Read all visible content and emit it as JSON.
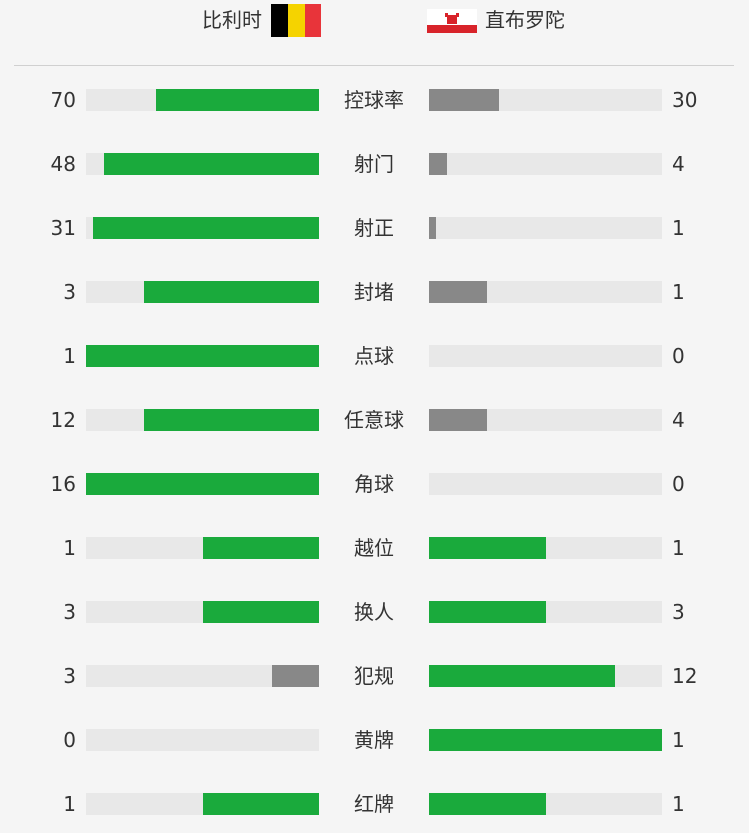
{
  "teams": {
    "home": "比利时",
    "away": "直布罗陀"
  },
  "colors": {
    "lead": "#1aaa3c",
    "trail": "#888888",
    "track": "#e8e8e8"
  },
  "stats": [
    {
      "label": "控球率",
      "home": 70,
      "away": 30
    },
    {
      "label": "射门",
      "home": 48,
      "away": 4
    },
    {
      "label": "射正",
      "home": 31,
      "away": 1
    },
    {
      "label": "封堵",
      "home": 3,
      "away": 1
    },
    {
      "label": "点球",
      "home": 1,
      "away": 0
    },
    {
      "label": "任意球",
      "home": 12,
      "away": 4
    },
    {
      "label": "角球",
      "home": 16,
      "away": 0
    },
    {
      "label": "越位",
      "home": 1,
      "away": 1
    },
    {
      "label": "换人",
      "home": 3,
      "away": 3
    },
    {
      "label": "犯规",
      "home": 3,
      "away": 12
    },
    {
      "label": "黄牌",
      "home": 0,
      "away": 1
    },
    {
      "label": "红牌",
      "home": 1,
      "away": 1
    }
  ]
}
